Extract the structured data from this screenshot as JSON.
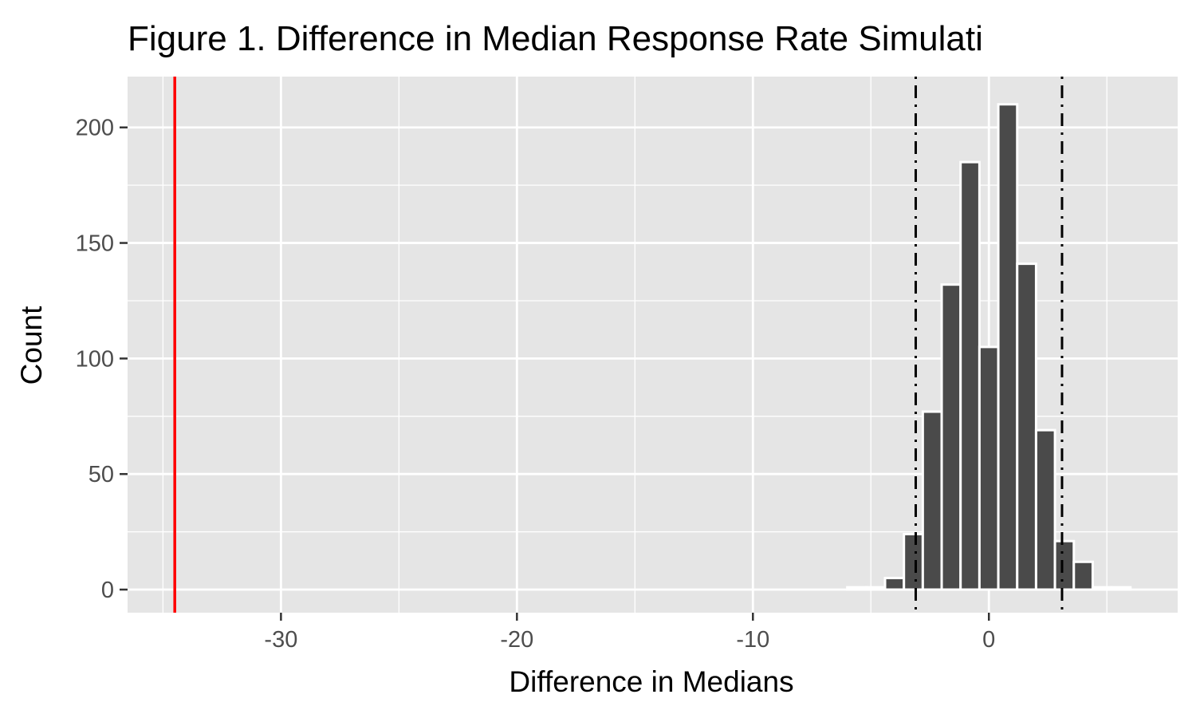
{
  "chart_data": {
    "type": "bar",
    "title": "Figure 1. Difference in Median Response Rate Simulati",
    "xlabel": "Difference in Medians",
    "ylabel": "Count",
    "xlim": [
      -36.5,
      8
    ],
    "ylim": [
      -10,
      222
    ],
    "x_ticks": [
      -30,
      -20,
      -10,
      0
    ],
    "x_tick_labels": [
      "-30",
      "-20",
      "-10",
      "0"
    ],
    "y_ticks": [
      0,
      50,
      100,
      150,
      200
    ],
    "y_tick_labels": [
      "0",
      "50",
      "100",
      "150",
      "200"
    ],
    "grid": true,
    "bin_width": 0.8,
    "bins": [
      {
        "x": -5.6,
        "count": 1
      },
      {
        "x": -4.8,
        "count": 1
      },
      {
        "x": -4.0,
        "count": 5
      },
      {
        "x": -3.2,
        "count": 24
      },
      {
        "x": -2.4,
        "count": 77
      },
      {
        "x": -1.6,
        "count": 132
      },
      {
        "x": -0.8,
        "count": 185
      },
      {
        "x": 0.0,
        "count": 105
      },
      {
        "x": 0.8,
        "count": 210
      },
      {
        "x": 1.6,
        "count": 141
      },
      {
        "x": 2.4,
        "count": 69
      },
      {
        "x": 3.2,
        "count": 21
      },
      {
        "x": 4.0,
        "count": 12
      },
      {
        "x": 4.8,
        "count": 1
      },
      {
        "x": 5.6,
        "count": 1
      }
    ],
    "reference_lines": [
      {
        "x": -34.5,
        "style": "solid",
        "color": "#ff0000"
      },
      {
        "x": -3.1,
        "style": "dotdash",
        "color": "#000000"
      },
      {
        "x": 3.1,
        "style": "dotdash",
        "color": "#000000"
      }
    ],
    "colors": {
      "panel": "#e5e5e5",
      "grid": "#ffffff",
      "bar_fill": "#4a4a4a",
      "bar_outline": "#ffffff"
    }
  }
}
